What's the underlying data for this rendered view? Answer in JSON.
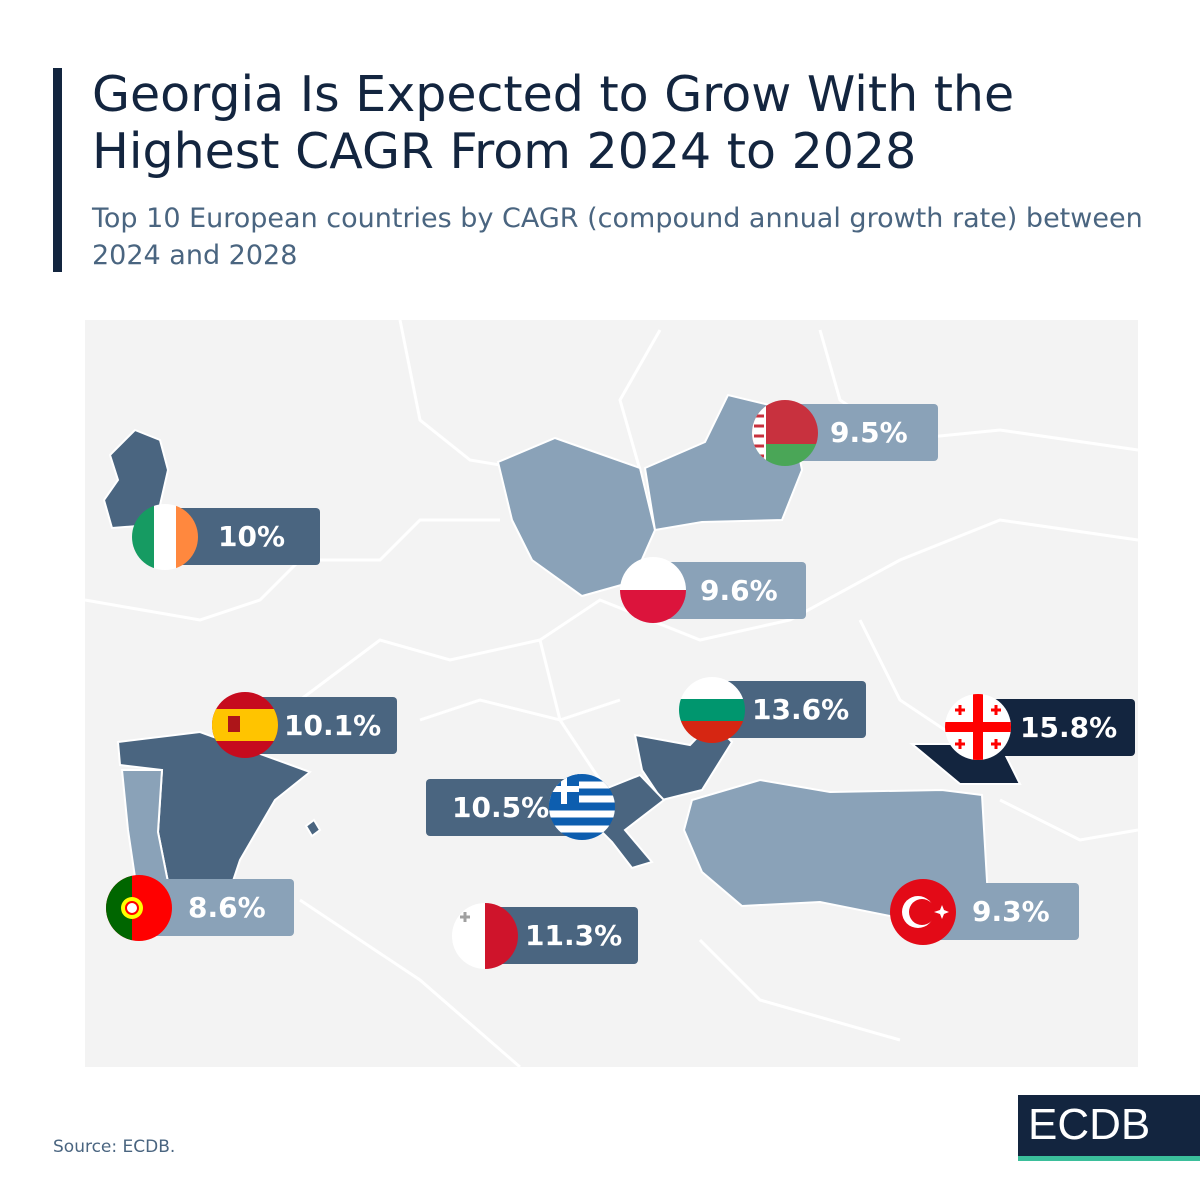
{
  "header": {
    "title": "Georgia Is Expected to Grow With the Highest CAGR From 2024 to 2028",
    "subtitle": "Top 10 European countries by CAGR (compound annual growth rate) between 2024 and 2028"
  },
  "colors": {
    "high": "#13253f",
    "mid": "#4a6580",
    "low": "#8aa2b8",
    "map_background": "#f3f3f3",
    "accent": "#3bbf9b"
  },
  "labels": [
    {
      "value": "9.5%",
      "flag": "belarus-flag-icon"
    },
    {
      "value": "10%",
      "flag": "ireland-flag-icon"
    },
    {
      "value": "9.6%",
      "flag": "poland-flag-icon"
    },
    {
      "value": "10.1%",
      "flag": "spain-flag-icon"
    },
    {
      "value": "13.6%",
      "flag": "bulgaria-flag-icon"
    },
    {
      "value": "15.8%",
      "flag": "georgia-flag-icon"
    },
    {
      "value": "10.5%",
      "flag": "greece-flag-icon"
    },
    {
      "value": "8.6%",
      "flag": "portugal-flag-icon"
    },
    {
      "value": "11.3%",
      "flag": "malta-flag-icon"
    },
    {
      "value": "9.3%",
      "flag": "turkey-flag-icon"
    }
  ],
  "footer": {
    "source": "Source: ECDB.",
    "logo": "ECDB"
  }
}
